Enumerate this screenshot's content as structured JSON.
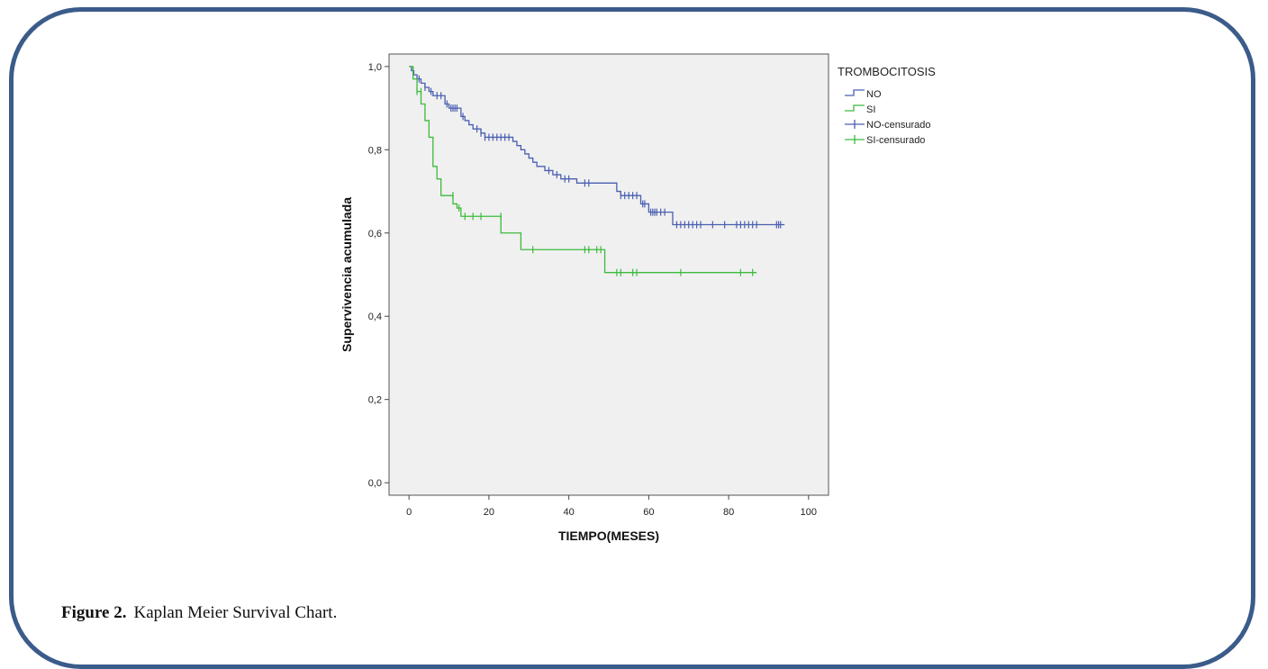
{
  "caption": {
    "label": "Figure 2.",
    "text": "Kaplan Meier Survival Chart."
  },
  "colors": {
    "border": "#3b5b8a",
    "plot_bg": "#f0f0f0",
    "no": "#4a5fb0",
    "si": "#3dba3d"
  },
  "chart_data": {
    "type": "line",
    "subtype": "kaplan-meier step",
    "xlabel": "TIEMPO(MESES)",
    "ylabel": "Supervivencia acumulada",
    "xlim": [
      -5,
      105
    ],
    "ylim": [
      -0.03,
      1.03
    ],
    "x_ticks": [
      0,
      20,
      40,
      60,
      80,
      100
    ],
    "x_tick_labels": [
      "0",
      "20",
      "40",
      "60",
      "80",
      "100"
    ],
    "y_ticks": [
      0.0,
      0.2,
      0.4,
      0.6,
      0.8,
      1.0
    ],
    "y_tick_labels": [
      "0,0",
      "0,2",
      "0,4",
      "0,6",
      "0,8",
      "1,0"
    ],
    "grid": false,
    "legend": {
      "title": "TROMBOCITOSIS",
      "placement": "right",
      "entries": [
        {
          "label": "NO",
          "kind": "step",
          "series": 0
        },
        {
          "label": "SI",
          "kind": "step",
          "series": 1
        },
        {
          "label": "NO-censurado",
          "kind": "censor",
          "series": 0
        },
        {
          "label": "SI-censurado",
          "kind": "censor",
          "series": 1
        }
      ]
    },
    "series": [
      {
        "name": "NO",
        "color": "#4a5fb0",
        "steps": [
          [
            0,
            1.0
          ],
          [
            0.6,
            0.99
          ],
          [
            1.2,
            0.98
          ],
          [
            2,
            0.97
          ],
          [
            3,
            0.96
          ],
          [
            4,
            0.95
          ],
          [
            5,
            0.94
          ],
          [
            6,
            0.93
          ],
          [
            9,
            0.91
          ],
          [
            10,
            0.9
          ],
          [
            13,
            0.88
          ],
          [
            14,
            0.87
          ],
          [
            15,
            0.86
          ],
          [
            16,
            0.85
          ],
          [
            18,
            0.84
          ],
          [
            19,
            0.83
          ],
          [
            26,
            0.82
          ],
          [
            27,
            0.81
          ],
          [
            28,
            0.8
          ],
          [
            29,
            0.79
          ],
          [
            30,
            0.78
          ],
          [
            31,
            0.77
          ],
          [
            32,
            0.76
          ],
          [
            34,
            0.75
          ],
          [
            36,
            0.74
          ],
          [
            38,
            0.73
          ],
          [
            42,
            0.72
          ],
          [
            52,
            0.7
          ],
          [
            53,
            0.69
          ],
          [
            58,
            0.67
          ],
          [
            60,
            0.65
          ],
          [
            66,
            0.62
          ],
          [
            94,
            0.62
          ]
        ],
        "censored": [
          [
            1,
            0.99
          ],
          [
            2.5,
            0.97
          ],
          [
            4,
            0.95
          ],
          [
            5.5,
            0.94
          ],
          [
            7,
            0.93
          ],
          [
            8,
            0.93
          ],
          [
            9.5,
            0.91
          ],
          [
            10.5,
            0.9
          ],
          [
            11,
            0.9
          ],
          [
            11.5,
            0.9
          ],
          [
            12,
            0.9
          ],
          [
            13.5,
            0.88
          ],
          [
            17,
            0.85
          ],
          [
            18,
            0.84
          ],
          [
            19,
            0.83
          ],
          [
            20,
            0.83
          ],
          [
            21,
            0.83
          ],
          [
            22,
            0.83
          ],
          [
            23,
            0.83
          ],
          [
            24,
            0.83
          ],
          [
            25,
            0.83
          ],
          [
            35,
            0.75
          ],
          [
            37,
            0.74
          ],
          [
            39,
            0.73
          ],
          [
            40,
            0.73
          ],
          [
            44,
            0.72
          ],
          [
            45,
            0.72
          ],
          [
            53,
            0.69
          ],
          [
            54,
            0.69
          ],
          [
            55,
            0.69
          ],
          [
            56,
            0.69
          ],
          [
            57,
            0.69
          ],
          [
            58.5,
            0.67
          ],
          [
            59,
            0.67
          ],
          [
            60.5,
            0.65
          ],
          [
            61,
            0.65
          ],
          [
            61.5,
            0.65
          ],
          [
            62,
            0.65
          ],
          [
            63,
            0.65
          ],
          [
            64,
            0.65
          ],
          [
            67,
            0.62
          ],
          [
            68,
            0.62
          ],
          [
            69,
            0.62
          ],
          [
            70,
            0.62
          ],
          [
            71,
            0.62
          ],
          [
            72,
            0.62
          ],
          [
            73,
            0.62
          ],
          [
            76,
            0.62
          ],
          [
            79,
            0.62
          ],
          [
            82,
            0.62
          ],
          [
            83,
            0.62
          ],
          [
            84,
            0.62
          ],
          [
            85,
            0.62
          ],
          [
            86,
            0.62
          ],
          [
            87,
            0.62
          ],
          [
            92,
            0.62
          ],
          [
            92.5,
            0.62
          ],
          [
            93,
            0.62
          ]
        ]
      },
      {
        "name": "SI",
        "color": "#3dba3d",
        "steps": [
          [
            0,
            1.0
          ],
          [
            1,
            0.97
          ],
          [
            2,
            0.94
          ],
          [
            3,
            0.91
          ],
          [
            4,
            0.87
          ],
          [
            5,
            0.83
          ],
          [
            6,
            0.76
          ],
          [
            7,
            0.73
          ],
          [
            8,
            0.69
          ],
          [
            11,
            0.67
          ],
          [
            12,
            0.66
          ],
          [
            13,
            0.64
          ],
          [
            23,
            0.6
          ],
          [
            28,
            0.56
          ],
          [
            49,
            0.505
          ],
          [
            87,
            0.505
          ]
        ],
        "censored": [
          [
            2,
            0.94
          ],
          [
            3,
            0.94
          ],
          [
            11,
            0.69
          ],
          [
            12.5,
            0.66
          ],
          [
            14,
            0.64
          ],
          [
            16,
            0.64
          ],
          [
            18,
            0.64
          ],
          [
            23,
            0.64
          ],
          [
            31,
            0.56
          ],
          [
            44,
            0.56
          ],
          [
            45,
            0.56
          ],
          [
            47,
            0.56
          ],
          [
            48,
            0.56
          ],
          [
            52,
            0.505
          ],
          [
            53,
            0.505
          ],
          [
            56,
            0.505
          ],
          [
            57,
            0.505
          ],
          [
            68,
            0.505
          ],
          [
            83,
            0.505
          ],
          [
            86,
            0.505
          ]
        ]
      }
    ]
  }
}
